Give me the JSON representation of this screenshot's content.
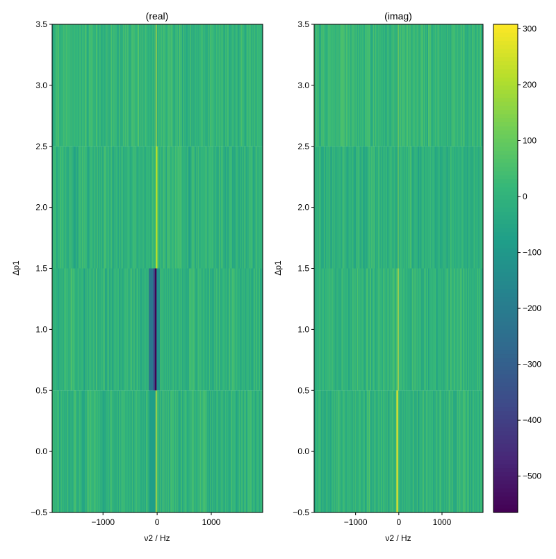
{
  "chart_data": [
    {
      "type": "heatmap",
      "title": "(real)",
      "xlabel": "ν2 / Hz",
      "ylabel": "Δp1",
      "xlim": [
        -1940,
        1950
      ],
      "ylim": [
        -0.5,
        3.5
      ],
      "xticks": [
        -1000,
        0,
        1000
      ],
      "xtick_labels": [
        "−1000",
        "0",
        "1000"
      ],
      "yticks": [
        -0.5,
        0.0,
        0.5,
        1.0,
        1.5,
        2.0,
        2.5,
        3.0,
        3.5
      ],
      "ytick_labels": [
        "−0.5",
        "0.0",
        "0.5",
        "1.0",
        "1.5",
        "2.0",
        "2.5",
        "3.0",
        "3.5"
      ],
      "rows": [
        {
          "y_range": [
            -0.5,
            0.5
          ],
          "noise_mean": 0,
          "noise_amp": 70,
          "seed": 11,
          "features": [
            {
              "center": -20,
              "width": 25,
              "value": 280
            },
            {
              "center": -80,
              "width": 120,
              "value": -80
            }
          ]
        },
        {
          "y_range": [
            0.5,
            1.5
          ],
          "noise_mean": 0,
          "noise_amp": 70,
          "seed": 23,
          "features": [
            {
              "center": -110,
              "width": 90,
              "value": -220
            },
            {
              "center": -50,
              "width": 60,
              "value": -330
            },
            {
              "center": -25,
              "width": 25,
              "value": -565
            },
            {
              "center": 20,
              "width": 60,
              "value": -120
            }
          ]
        },
        {
          "y_range": [
            1.5,
            2.5
          ],
          "noise_mean": 0,
          "noise_amp": 70,
          "seed": 37,
          "features": [
            {
              "center": -10,
              "width": 25,
              "value": 210
            }
          ]
        },
        {
          "y_range": [
            2.5,
            3.5
          ],
          "noise_mean": 10,
          "noise_amp": 70,
          "seed": 41,
          "features": [
            {
              "center": -20,
              "width": 25,
              "value": 250
            }
          ]
        }
      ]
    },
    {
      "type": "heatmap",
      "title": "(imag)",
      "xlabel": "ν2 / Hz",
      "ylabel": "Δp1",
      "xlim": [
        -1960,
        1950
      ],
      "ylim": [
        -0.5,
        3.5
      ],
      "xticks": [
        -1000,
        0,
        1000
      ],
      "xtick_labels": [
        "−1000",
        "0",
        "1000"
      ],
      "yticks": [
        -0.5,
        0.0,
        0.5,
        1.0,
        1.5,
        2.0,
        2.5,
        3.0,
        3.5
      ],
      "ytick_labels": [
        "−0.5",
        "0.0",
        "0.5",
        "1.0",
        "1.5",
        "2.0",
        "2.5",
        "3.0",
        "3.5"
      ],
      "rows": [
        {
          "y_range": [
            -0.5,
            0.5
          ],
          "noise_mean": 0,
          "noise_amp": 70,
          "seed": 53,
          "features": [
            {
              "center": -40,
              "width": 25,
              "value": 290
            }
          ]
        },
        {
          "y_range": [
            0.5,
            1.5
          ],
          "noise_mean": 0,
          "noise_amp": 70,
          "seed": 67,
          "features": [
            {
              "center": -10,
              "width": 25,
              "value": 300
            }
          ]
        },
        {
          "y_range": [
            1.5,
            2.5
          ],
          "noise_mean": -10,
          "noise_amp": 70,
          "seed": 71,
          "features": [
            {
              "center": -10,
              "width": 25,
              "value": 150
            }
          ]
        },
        {
          "y_range": [
            2.5,
            3.5
          ],
          "noise_mean": 10,
          "noise_amp": 70,
          "seed": 89,
          "features": [
            {
              "center": -10,
              "width": 25,
              "value": 160
            }
          ]
        }
      ]
    },
    {
      "type": "colorbar",
      "colormap": "viridis",
      "vmin": -565,
      "vmax": 308,
      "ticks": [
        300,
        200,
        100,
        0,
        -100,
        -200,
        -300,
        -400,
        -500
      ],
      "tick_labels": [
        "300",
        "200",
        "100",
        "0",
        "−100",
        "−200",
        "−300",
        "−400",
        "−500"
      ]
    }
  ]
}
